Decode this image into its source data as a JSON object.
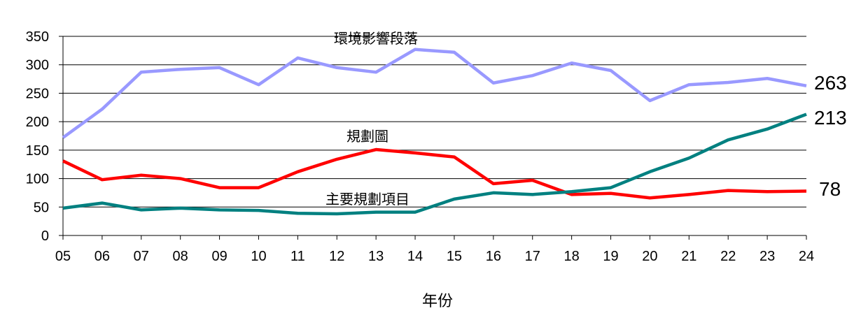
{
  "chart_data": {
    "type": "line",
    "title": "",
    "xlabel": "年份",
    "ylabel": "",
    "ylim": [
      0,
      350
    ],
    "yticks": [
      "0",
      "50",
      "100",
      "150",
      "200",
      "250",
      "300",
      "350"
    ],
    "categories": [
      "05",
      "06",
      "07",
      "08",
      "09",
      "10",
      "11",
      "12",
      "13",
      "14",
      "15",
      "16",
      "17",
      "18",
      "19",
      "20",
      "21",
      "22",
      "23",
      "24"
    ],
    "grid": true,
    "series": [
      {
        "name": "環境影響段落",
        "color": "#9999FF",
        "end_label": "263",
        "values": [
          172,
          222,
          287,
          292,
          295,
          265,
          312,
          295,
          287,
          327,
          322,
          268,
          281,
          303,
          290,
          237,
          265,
          269,
          276,
          263
        ]
      },
      {
        "name": "規劃圖",
        "color": "#FF0000",
        "end_label": "78",
        "values": [
          131,
          98,
          106,
          100,
          84,
          84,
          112,
          134,
          151,
          145,
          138,
          91,
          97,
          72,
          74,
          66,
          72,
          79,
          77,
          78
        ]
      },
      {
        "name": "主要規劃項目",
        "color": "#008080",
        "end_label": "213",
        "values": [
          48,
          57,
          45,
          48,
          45,
          44,
          39,
          38,
          41,
          41,
          64,
          75,
          72,
          77,
          84,
          112,
          136,
          168,
          187,
          213
        ]
      }
    ]
  }
}
